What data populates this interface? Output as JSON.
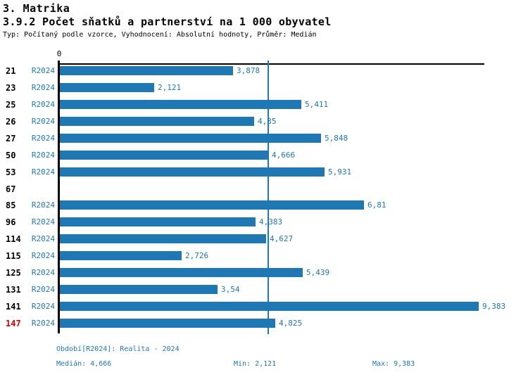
{
  "header": {
    "title": "3. Matrika",
    "subtitle": "3.9.2 Počet sňatků a partnerství na 1 000 obyvatel",
    "meta": "Typ: Počítaný podle vzorce, Vyhodnocení: Absolutní hodnoty, Průměr: Medián"
  },
  "chart_data": {
    "type": "bar",
    "orientation": "horizontal",
    "title": "3.9.2 Počet sňatků a partnerství na 1 000 obyvatel",
    "xlabel": "",
    "ylabel": "",
    "x_axis": {
      "zero_label": "0",
      "min": 0,
      "max_shown": 9.383,
      "grid": "median-line-only"
    },
    "categories": [
      "21",
      "23",
      "25",
      "26",
      "27",
      "50",
      "53",
      "67",
      "85",
      "96",
      "114",
      "115",
      "125",
      "131",
      "141",
      "147"
    ],
    "series": [
      {
        "name": "R2024",
        "values": [
          3.878,
          2.121,
          5.411,
          4.35,
          5.848,
          4.666,
          5.931,
          null,
          6.81,
          4.383,
          4.627,
          2.726,
          5.439,
          3.54,
          9.383,
          4.825
        ]
      }
    ],
    "rows": [
      {
        "id": "21",
        "period": "R2024",
        "value": 3.878,
        "label": "3,878"
      },
      {
        "id": "23",
        "period": "R2024",
        "value": 2.121,
        "label": "2,121"
      },
      {
        "id": "25",
        "period": "R2024",
        "value": 5.411,
        "label": "5,411"
      },
      {
        "id": "26",
        "period": "R2024",
        "value": 4.35,
        "label": "4,35"
      },
      {
        "id": "27",
        "period": "R2024",
        "value": 5.848,
        "label": "5,848"
      },
      {
        "id": "50",
        "period": "R2024",
        "value": 4.666,
        "label": "4,666"
      },
      {
        "id": "53",
        "period": "R2024",
        "value": 5.931,
        "label": "5,931"
      },
      {
        "id": "67",
        "period": null,
        "value": null,
        "label": null
      },
      {
        "id": "85",
        "period": "R2024",
        "value": 6.81,
        "label": "6,81"
      },
      {
        "id": "96",
        "period": "R2024",
        "value": 4.383,
        "label": "4,383"
      },
      {
        "id": "114",
        "period": "R2024",
        "value": 4.627,
        "label": "4,627"
      },
      {
        "id": "115",
        "period": "R2024",
        "value": 2.726,
        "label": "2,726"
      },
      {
        "id": "125",
        "period": "R2024",
        "value": 5.439,
        "label": "5,439"
      },
      {
        "id": "131",
        "period": "R2024",
        "value": 3.54,
        "label": "3,54"
      },
      {
        "id": "141",
        "period": "R2024",
        "value": 9.383,
        "label": "9,383"
      },
      {
        "id": "147",
        "period": "R2024",
        "value": 4.825,
        "label": "4,825",
        "highlight": true
      }
    ],
    "median_value": 4.666,
    "bar_color": "#1f77b4",
    "highlight_row_color": "#d40000",
    "legend": "none"
  },
  "footer": {
    "period_line": "Období[R2024]: Realita - 2024",
    "median": "Medián: 4,666",
    "min": "Min: 2,121",
    "max": "Max: 9,383"
  }
}
